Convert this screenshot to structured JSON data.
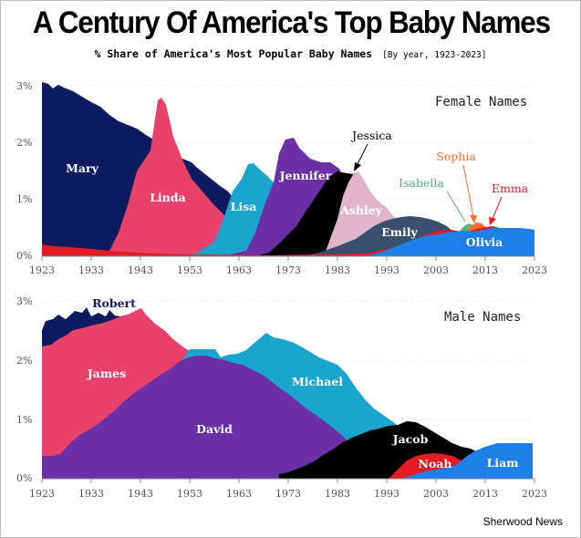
{
  "header": {
    "title": "A Century Of America's Top Baby Names",
    "subtitle": "% Share of America's Most Popular Baby Names",
    "subtitle_extra": "[By year, 1923-2023]"
  },
  "footer": {
    "source": "Sherwood News"
  },
  "chart_data": [
    {
      "type": "area",
      "title": "Female Names",
      "x_ticks": [
        "1923",
        "1933",
        "1943",
        "1953",
        "1963",
        "1973",
        "1983",
        "1993",
        "2003",
        "2013",
        "2023"
      ],
      "y_ticks": [
        "3%",
        "2%",
        "1%",
        "0%"
      ],
      "xlim": [
        1923,
        2023
      ],
      "ylim": [
        0,
        3
      ],
      "series": [
        {
          "name": "Mary",
          "color": "#0d1b61",
          "points": [
            [
              1923,
              3.0
            ],
            [
              1928,
              2.95
            ],
            [
              1933,
              2.8
            ],
            [
              1938,
              2.6
            ],
            [
              1943,
              2.3
            ],
            [
              1946,
              2.2
            ],
            [
              1950,
              1.95
            ],
            [
              1953,
              1.7
            ],
            [
              1957,
              1.35
            ],
            [
              1960,
              1.1
            ],
            [
              1963,
              0.95
            ],
            [
              1965,
              0.6
            ]
          ]
        },
        {
          "name": "Linda",
          "color": "#e8416a",
          "points": [
            [
              1935,
              0.2
            ],
            [
              1940,
              0.6
            ],
            [
              1943,
              1.5
            ],
            [
              1945,
              2.2
            ],
            [
              1947,
              2.75
            ],
            [
              1949,
              2.4
            ],
            [
              1952,
              1.7
            ],
            [
              1955,
              1.25
            ],
            [
              1958,
              0.9
            ],
            [
              1962,
              0.55
            ],
            [
              1966,
              0.3
            ],
            [
              1972,
              0.1
            ]
          ]
        },
        {
          "name": "Lisa",
          "color": "#1aa5cf",
          "points": [
            [
              1955,
              0.2
            ],
            [
              1958,
              0.6
            ],
            [
              1961,
              1.0
            ],
            [
              1964,
              1.6
            ],
            [
              1966,
              1.65
            ],
            [
              1969,
              1.4
            ],
            [
              1972,
              0.9
            ],
            [
              1976,
              0.4
            ],
            [
              1980,
              0.2
            ]
          ]
        },
        {
          "name": "Jennifer",
          "color": "#6b2fa6",
          "points": [
            [
              1966,
              0.3
            ],
            [
              1969,
              1.0
            ],
            [
              1971,
              1.7
            ],
            [
              1973,
              2.05
            ],
            [
              1976,
              1.95
            ],
            [
              1979,
              1.75
            ],
            [
              1983,
              1.65
            ],
            [
              1986,
              1.45
            ],
            [
              1990,
              0.8
            ],
            [
              1994,
              0.4
            ],
            [
              1998,
              0.2
            ]
          ]
        },
        {
          "name": "Jessica",
          "color": "#000000",
          "points": [
            [
              1970,
              0.1
            ],
            [
              1975,
              0.4
            ],
            [
              1979,
              0.8
            ],
            [
              1983,
              1.3
            ],
            [
              1987,
              1.5
            ],
            [
              1990,
              1.3
            ],
            [
              1994,
              0.7
            ],
            [
              1998,
              0.3
            ],
            [
              2002,
              0.15
            ]
          ]
        },
        {
          "name": "Ashley",
          "color": "#e0b4c9",
          "points": [
            [
              1979,
              0.3
            ],
            [
              1983,
              0.9
            ],
            [
              1986,
              1.2
            ],
            [
              1988,
              1.45
            ],
            [
              1991,
              1.0
            ],
            [
              1994,
              0.6
            ],
            [
              1998,
              0.35
            ],
            [
              2003,
              0.15
            ]
          ]
        },
        {
          "name": "Emily",
          "color": "#3a4f6e",
          "points": [
            [
              1983,
              0.2
            ],
            [
              1990,
              0.4
            ],
            [
              1995,
              0.65
            ],
            [
              2000,
              0.7
            ],
            [
              2004,
              0.55
            ],
            [
              2008,
              0.35
            ],
            [
              2012,
              0.2
            ]
          ]
        },
        {
          "name": "Isabella",
          "color": "#5db07a",
          "points": [
            [
              2005,
              0.3
            ],
            [
              2008,
              0.45
            ],
            [
              2010,
              0.5
            ],
            [
              2013,
              0.4
            ],
            [
              2016,
              0.3
            ]
          ]
        },
        {
          "name": "Sophia",
          "color": "#f07230",
          "points": [
            [
              2009,
              0.35
            ],
            [
              2011,
              0.45
            ],
            [
              2013,
              0.5
            ],
            [
              2015,
              0.4
            ],
            [
              2018,
              0.3
            ]
          ]
        },
        {
          "name": "Emma",
          "color": "#e31b23",
          "points": [
            [
              2000,
              0.3
            ],
            [
              2004,
              0.45
            ],
            [
              2008,
              0.45
            ],
            [
              2014,
              0.5
            ],
            [
              2018,
              0.45
            ]
          ]
        },
        {
          "name": "Olivia",
          "color": "#1d7fe8",
          "points": [
            [
              1995,
              0.2
            ],
            [
              2000,
              0.35
            ],
            [
              2005,
              0.4
            ],
            [
              2010,
              0.45
            ],
            [
              2014,
              0.5
            ],
            [
              2018,
              0.5
            ],
            [
              2023,
              0.5
            ]
          ]
        }
      ],
      "labels": [
        "Mary",
        "Linda",
        "Lisa",
        "Jennifer",
        "Ashley",
        "Emily",
        "Olivia"
      ],
      "annotations": [
        "Jessica",
        "Isabella",
        "Sophia",
        "Emma"
      ]
    },
    {
      "type": "area",
      "title": "Male Names",
      "x_ticks": [
        "1923",
        "1933",
        "1943",
        "1953",
        "1963",
        "1973",
        "1983",
        "1993",
        "2003",
        "2013",
        "2023"
      ],
      "y_ticks": [
        "3%",
        "2%",
        "1%",
        "0%"
      ],
      "xlim": [
        1923,
        2023
      ],
      "ylim": [
        0,
        3
      ],
      "series": [
        {
          "name": "Robert",
          "color": "#0d1b61",
          "points": [
            [
              1923,
              2.5
            ],
            [
              1928,
              2.6
            ],
            [
              1931,
              2.75
            ],
            [
              1935,
              2.6
            ],
            [
              1939,
              2.7
            ],
            [
              1944,
              2.7
            ],
            [
              1948,
              2.4
            ]
          ]
        },
        {
          "name": "James",
          "color": "#e8416a",
          "points": [
            [
              1923,
              2.3
            ],
            [
              1928,
              2.35
            ],
            [
              1933,
              2.5
            ],
            [
              1938,
              2.7
            ],
            [
              1943,
              2.85
            ],
            [
              1946,
              2.7
            ],
            [
              1950,
              2.35
            ],
            [
              1953,
              2.15
            ],
            [
              1957,
              1.9
            ],
            [
              1960,
              1.7
            ]
          ]
        },
        {
          "name": "Michael",
          "color": "#1aa5cf",
          "points": [
            [
              1948,
              1.8
            ],
            [
              1952,
              2.1
            ],
            [
              1956,
              2.2
            ],
            [
              1960,
              2.2
            ],
            [
              1965,
              2.25
            ],
            [
              1969,
              2.45
            ],
            [
              1973,
              2.3
            ],
            [
              1978,
              2.2
            ],
            [
              1983,
              2.05
            ],
            [
              1988,
              1.8
            ],
            [
              1993,
              1.3
            ],
            [
              1997,
              0.9
            ],
            [
              2001,
              0.6
            ],
            [
              2005,
              0.4
            ]
          ]
        },
        {
          "name": "David",
          "color": "#6b2fa6",
          "points": [
            [
              1923,
              0.4
            ],
            [
              1928,
              0.45
            ],
            [
              1933,
              0.75
            ],
            [
              1938,
              0.9
            ],
            [
              1943,
              1.2
            ],
            [
              1948,
              1.7
            ],
            [
              1953,
              2.0
            ],
            [
              1958,
              2.1
            ],
            [
              1963,
              2.05
            ],
            [
              1968,
              1.9
            ],
            [
              1973,
              1.65
            ],
            [
              1978,
              1.35
            ],
            [
              1983,
              1.15
            ],
            [
              1988,
              0.95
            ],
            [
              1993,
              0.6
            ],
            [
              1998,
              0.35
            ],
            [
              2003,
              0.2
            ]
          ]
        },
        {
          "name": "Jacob",
          "color": "#000000",
          "points": [
            [
              1970,
              0.05
            ],
            [
              1980,
              0.2
            ],
            [
              1988,
              0.5
            ],
            [
              1993,
              0.75
            ],
            [
              1998,
              0.95
            ],
            [
              2003,
              0.85
            ],
            [
              2008,
              0.6
            ],
            [
              2012,
              0.45
            ],
            [
              2016,
              0.3
            ]
          ]
        },
        {
          "name": "Noah",
          "color": "#e31b23",
          "points": [
            [
              1995,
              0.1
            ],
            [
              2000,
              0.2
            ],
            [
              2005,
              0.25
            ],
            [
              2010,
              0.3
            ],
            [
              2014,
              0.3
            ]
          ]
        },
        {
          "name": "Liam",
          "color": "#1d7fe8",
          "points": [
            [
              2003,
              0.1
            ],
            [
              2007,
              0.25
            ],
            [
              2011,
              0.45
            ],
            [
              2015,
              0.55
            ],
            [
              2019,
              0.6
            ],
            [
              2023,
              0.6
            ]
          ]
        }
      ],
      "labels": [
        "Robert",
        "James",
        "Michael",
        "David",
        "Jacob",
        "Noah",
        "Liam"
      ],
      "annotations": []
    }
  ]
}
